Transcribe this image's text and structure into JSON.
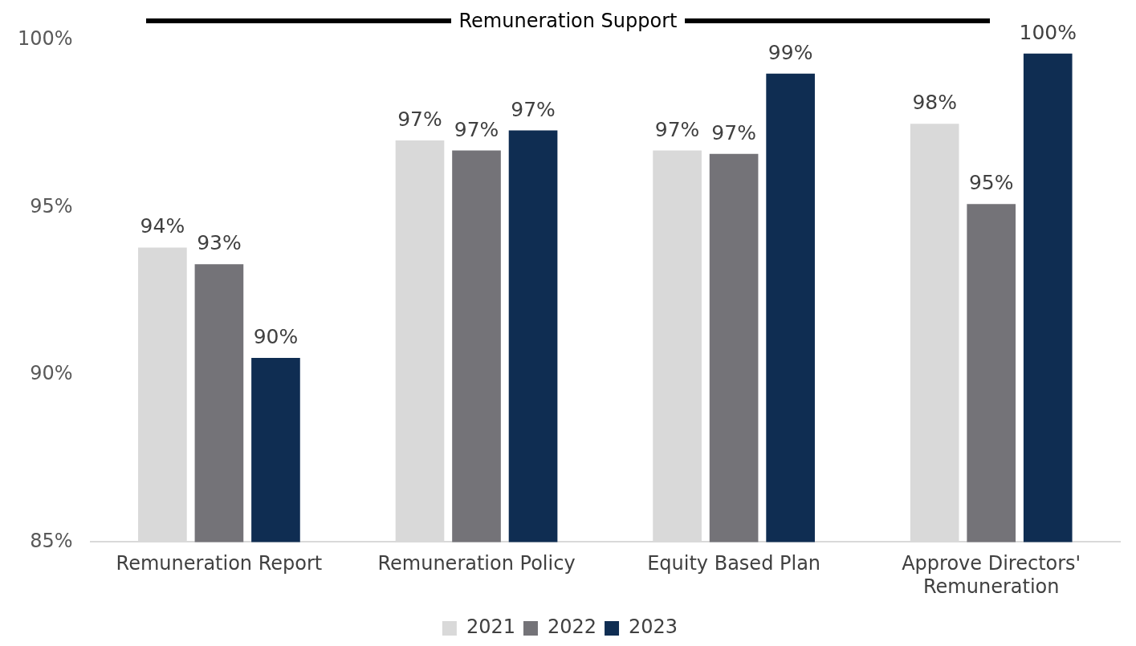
{
  "chart_data": {
    "type": "bar",
    "title": "Remuneration Support",
    "categories": [
      "Remuneration Report",
      "Remuneration Policy",
      "Equity Based Plan",
      "Approve Directors' Remuneration"
    ],
    "series": [
      {
        "name": "2021",
        "color": "#d9d9d9",
        "values": [
          93.8,
          97.0,
          96.7,
          97.5
        ],
        "value_labels": [
          "94%",
          "97%",
          "97%",
          "98%"
        ]
      },
      {
        "name": "2022",
        "color": "#747378",
        "values": [
          93.3,
          96.7,
          96.6,
          95.1
        ],
        "value_labels": [
          "93%",
          "97%",
          "97%",
          "95%"
        ]
      },
      {
        "name": "2023",
        "color": "#0f2d52",
        "values": [
          90.5,
          97.3,
          99.0,
          99.6
        ],
        "value_labels": [
          "90%",
          "97%",
          "99%",
          "100%"
        ]
      }
    ],
    "ylim": [
      85,
      100
    ],
    "yticks": [
      {
        "value": 85,
        "label": "85%"
      },
      {
        "value": 90,
        "label": "90%"
      },
      {
        "value": 95,
        "label": "95%"
      },
      {
        "value": 100,
        "label": "100%"
      }
    ],
    "grid": false,
    "legend": "bottom"
  }
}
